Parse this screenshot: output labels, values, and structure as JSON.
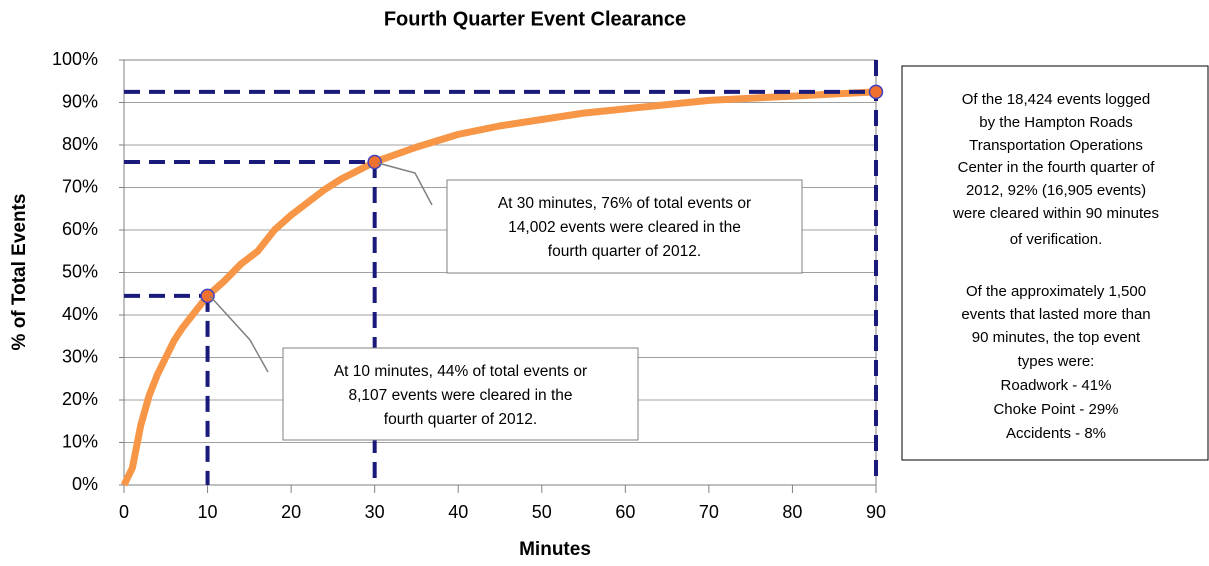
{
  "chart_data": {
    "type": "line",
    "title": "Fourth Quarter Event Clearance",
    "xlabel": "Minutes",
    "ylabel": "% of Total Events",
    "x": [
      0,
      1,
      2,
      3,
      4,
      5,
      6,
      7,
      8,
      9,
      10,
      12,
      14,
      16,
      18,
      20,
      22,
      24,
      26,
      28,
      30,
      35,
      40,
      45,
      50,
      55,
      60,
      65,
      70,
      75,
      80,
      85,
      90
    ],
    "values": [
      0,
      4,
      14,
      21,
      26,
      30,
      34,
      37,
      39.5,
      42,
      44.5,
      48,
      52,
      55,
      60,
      63.5,
      66.5,
      69.5,
      72,
      74,
      76,
      79.5,
      82.5,
      84.5,
      86,
      87.5,
      88.5,
      89.5,
      90.5,
      91,
      91.5,
      92,
      92.5
    ],
    "color": "#f79646",
    "points": {
      "x": [
        10,
        30,
        90
      ],
      "values": [
        44.5,
        76,
        92.5
      ],
      "color": "#f07030",
      "edge": "#4040c0",
      "guide_color": "#1a1a7a"
    },
    "xlim": [
      0,
      90
    ],
    "xticks": [
      0,
      10,
      20,
      30,
      40,
      50,
      60,
      70,
      80,
      90
    ],
    "ylim": [
      0,
      100
    ],
    "yticks": [
      {
        "value": 0,
        "label": "0%"
      },
      {
        "value": 10,
        "label": "10%"
      },
      {
        "value": 20,
        "label": "20%"
      },
      {
        "value": 30,
        "label": "30%"
      },
      {
        "value": 40,
        "label": "40%"
      },
      {
        "value": 50,
        "label": "50%"
      },
      {
        "value": 60,
        "label": "60%"
      },
      {
        "value": 70,
        "label": "70%"
      },
      {
        "value": 80,
        "label": "80%"
      },
      {
        "value": 90,
        "label": "90%"
      },
      {
        "value": 100,
        "label": "100%"
      }
    ],
    "grid": true,
    "annotations": [
      {
        "lines": [
          "At 30 minutes, 76% of total events or",
          "14,002 events  were cleared in the",
          "fourth quarter of 2012."
        ]
      },
      {
        "lines": [
          "At 10 minutes, 44% of total events or",
          "8,107 events were cleared in the",
          "fourth quarter of 2012."
        ]
      }
    ],
    "note": [
      "Of the 18,424 events logged",
      "by the Hampton Roads",
      "Transportation Operations",
      "Center in the fourth quarter of",
      "2012, 92% (16,905 events)",
      "were cleared within 90 minutes",
      "of verification.",
      "Of the approximately 1,500",
      "events that lasted more than",
      "90 minutes, the top event",
      "types were:",
      "Roadwork - 41%",
      "Choke Point - 29%",
      "Accidents - 8%"
    ]
  }
}
